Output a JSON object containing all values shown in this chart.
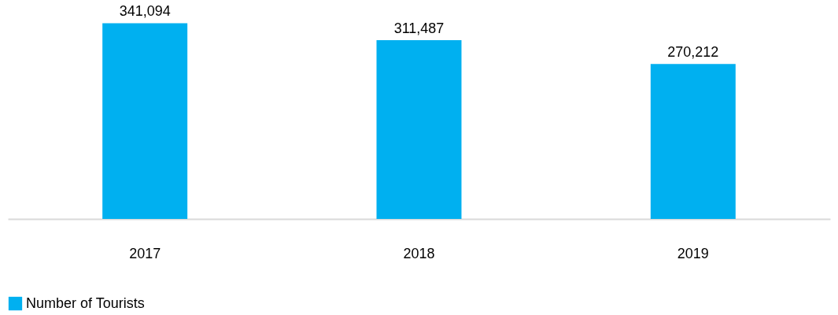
{
  "chart_data": {
    "type": "bar",
    "categories": [
      "2017",
      "2018",
      "2019"
    ],
    "series": [
      {
        "name": "Number of Tourists",
        "color": "#00b0f0",
        "values": [
          341094,
          311487,
          270212
        ],
        "value_labels": [
          "341,094",
          "311,487",
          "270,212"
        ]
      }
    ],
    "legend": "bottom"
  }
}
